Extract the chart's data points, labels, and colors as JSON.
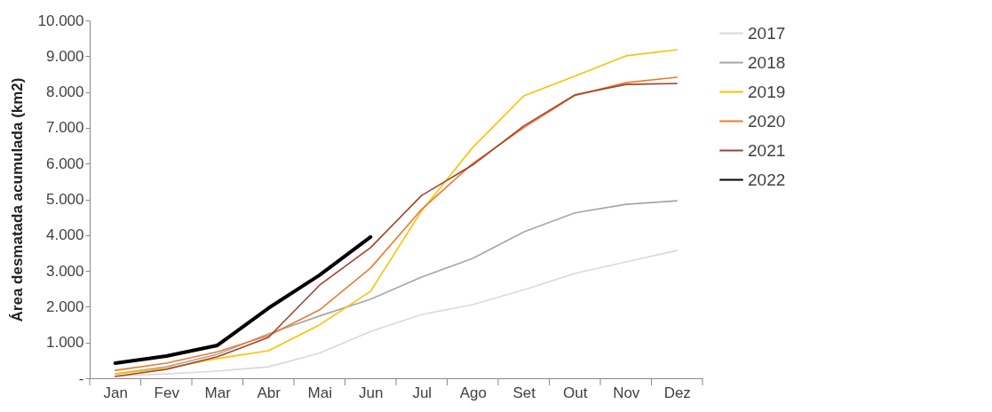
{
  "chart_data": {
    "type": "line",
    "ylabel": "Área desmatada acumulada (km2)",
    "categories": [
      "Jan",
      "Fev",
      "Mar",
      "Abr",
      "Mai",
      "Jun",
      "Jul",
      "Ago",
      "Set",
      "Out",
      "Nov",
      "Dez"
    ],
    "ylim": [
      0,
      10000
    ],
    "yticks": [
      {
        "value": 0,
        "label": "-"
      },
      {
        "value": 1000,
        "label": "1.000"
      },
      {
        "value": 2000,
        "label": "2.000"
      },
      {
        "value": 3000,
        "label": "3.000"
      },
      {
        "value": 4000,
        "label": "4.000"
      },
      {
        "value": 5000,
        "label": "5.000"
      },
      {
        "value": 6000,
        "label": "6.000"
      },
      {
        "value": 7000,
        "label": "7.000"
      },
      {
        "value": 8000,
        "label": "8.000"
      },
      {
        "value": 9000,
        "label": "9.000"
      },
      {
        "value": 10000,
        "label": "10.000"
      }
    ],
    "grid": false,
    "legend": "right",
    "marker": "none",
    "line_style": "solid",
    "series": [
      {
        "name": "2017",
        "color": "#d9d9d9",
        "values": [
          70,
          120,
          200,
          320,
          700,
          1310,
          1780,
          2060,
          2470,
          2930,
          3250,
          3570
        ]
      },
      {
        "name": "2018",
        "color": "#a6a6a6",
        "values": [
          120,
          320,
          670,
          1240,
          1740,
          2210,
          2830,
          3350,
          4090,
          4620,
          4860,
          4960
        ]
      },
      {
        "name": "2019",
        "color": "#ffc000",
        "values": [
          120,
          270,
          550,
          770,
          1490,
          2430,
          4680,
          6450,
          7890,
          8440,
          9010,
          9180
        ]
      },
      {
        "name": "2020",
        "color": "#e97c30",
        "values": [
          220,
          420,
          740,
          1190,
          1910,
          3080,
          4720,
          6000,
          7000,
          7900,
          8260,
          8410
        ]
      },
      {
        "name": "2021",
        "color": "#a5402d",
        "values": [
          50,
          250,
          600,
          1140,
          2600,
          3650,
          5110,
          5960,
          7050,
          7920,
          8210,
          8240
        ]
      },
      {
        "name": "2022",
        "color": "#000000",
        "values": [
          420,
          620,
          920,
          1960,
          2880,
          3950,
          null,
          null,
          null,
          null,
          null,
          null
        ]
      }
    ]
  }
}
